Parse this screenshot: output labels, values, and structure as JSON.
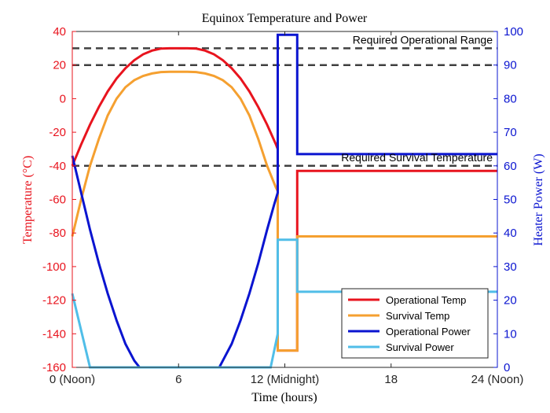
{
  "chart_data": {
    "type": "line",
    "title": "Equinox Temperature and Power",
    "xlabel": "Time (hours)",
    "ylabel_left": "Temperature (°C)",
    "ylabel_right": "Heater Power (W)",
    "xlim": [
      0,
      24
    ],
    "ylim_left": [
      -160,
      40
    ],
    "ylim_right": [
      0,
      100
    ],
    "x_ticks": [
      {
        "value": 0,
        "label": "0 (Noon)"
      },
      {
        "value": 6,
        "label": "6"
      },
      {
        "value": 12,
        "label": "12 (Midnight)"
      },
      {
        "value": 18,
        "label": "18"
      },
      {
        "value": 24,
        "label": "24 (Noon)"
      }
    ],
    "y_ticks_left": [
      "40",
      "20",
      "0",
      "-20",
      "-40",
      "-60",
      "-80",
      "-100",
      "-120",
      "-140",
      "-160"
    ],
    "y_ticks_right": [
      "100",
      "90",
      "80",
      "70",
      "60",
      "50",
      "40",
      "30",
      "20",
      "10",
      "0"
    ],
    "grid": false,
    "legend_position": "bottom-right",
    "reference_lines": [
      {
        "y": 30,
        "axis": "left",
        "color": "#404040",
        "style": "dashed",
        "label": "Required Operational Range"
      },
      {
        "y": 20,
        "axis": "left",
        "color": "#404040",
        "style": "dashed",
        "label": ""
      },
      {
        "y": -40,
        "axis": "left",
        "color": "#404040",
        "style": "dashed",
        "label": "Required Survival Temperature"
      }
    ],
    "series": [
      {
        "name": "Operational Temp",
        "axis": "left",
        "color": "#e8141e",
        "points": [
          [
            0,
            -40
          ],
          [
            0.5,
            -27.3
          ],
          [
            1,
            -15.5
          ],
          [
            1.5,
            -5
          ],
          [
            2,
            4.3
          ],
          [
            2.5,
            12
          ],
          [
            3,
            18.1
          ],
          [
            3.5,
            22.9
          ],
          [
            4,
            26.4
          ],
          [
            4.5,
            28.6
          ],
          [
            5,
            29.8
          ],
          [
            5.5,
            30
          ],
          [
            6,
            30
          ],
          [
            6.5,
            30
          ],
          [
            7,
            29.8
          ],
          [
            7.5,
            28.6
          ],
          [
            8,
            26.4
          ],
          [
            8.5,
            22.9
          ],
          [
            9,
            18.1
          ],
          [
            9.5,
            12
          ],
          [
            10,
            4.3
          ],
          [
            10.5,
            -5
          ],
          [
            11,
            -15.5
          ],
          [
            11.5,
            -27.3
          ],
          [
            11.6,
            -30
          ],
          [
            11.6,
            -150
          ],
          [
            12.7,
            -150
          ],
          [
            12.7,
            -43
          ],
          [
            24,
            -43
          ]
        ]
      },
      {
        "name": "Survival Temp",
        "axis": "left",
        "color": "#f5a030",
        "points": [
          [
            0,
            -82
          ],
          [
            0.5,
            -60
          ],
          [
            1,
            -40
          ],
          [
            1.5,
            -24
          ],
          [
            2,
            -10
          ],
          [
            2.5,
            0
          ],
          [
            3,
            6.8
          ],
          [
            3.5,
            11
          ],
          [
            4,
            13.5
          ],
          [
            4.5,
            15
          ],
          [
            5,
            15.8
          ],
          [
            5.5,
            16
          ],
          [
            6,
            16
          ],
          [
            6.5,
            16
          ],
          [
            7,
            15.8
          ],
          [
            7.5,
            15
          ],
          [
            8,
            13.5
          ],
          [
            8.5,
            11
          ],
          [
            9,
            6.8
          ],
          [
            9.5,
            0
          ],
          [
            10,
            -10
          ],
          [
            10.5,
            -24
          ],
          [
            11,
            -40
          ],
          [
            11.5,
            -53
          ],
          [
            11.6,
            -55
          ],
          [
            11.6,
            -150
          ],
          [
            12.7,
            -150
          ],
          [
            12.7,
            -82
          ],
          [
            24,
            -82
          ]
        ]
      },
      {
        "name": "Operational Power",
        "axis": "right",
        "color": "#0a14d0",
        "points": [
          [
            0,
            63
          ],
          [
            0.5,
            52
          ],
          [
            1,
            41
          ],
          [
            1.5,
            31
          ],
          [
            2,
            22
          ],
          [
            2.5,
            14
          ],
          [
            3,
            7
          ],
          [
            3.5,
            2
          ],
          [
            3.8,
            0
          ],
          [
            8.3,
            0
          ],
          [
            8.5,
            2
          ],
          [
            9,
            7
          ],
          [
            9.5,
            14
          ],
          [
            10,
            22
          ],
          [
            10.5,
            31
          ],
          [
            11,
            41
          ],
          [
            11.4,
            48.5
          ],
          [
            11.6,
            52
          ],
          [
            11.6,
            99
          ],
          [
            12.7,
            99
          ],
          [
            12.7,
            63.5
          ],
          [
            24,
            63.5
          ]
        ]
      },
      {
        "name": "Survival Power",
        "axis": "right",
        "color": "#50bee8",
        "points": [
          [
            0,
            22
          ],
          [
            0.5,
            11
          ],
          [
            1,
            0
          ],
          [
            11.2,
            0
          ],
          [
            11.6,
            10
          ],
          [
            11.6,
            38
          ],
          [
            12.7,
            38
          ],
          [
            12.7,
            22.5
          ],
          [
            24,
            22.5
          ]
        ]
      }
    ]
  }
}
